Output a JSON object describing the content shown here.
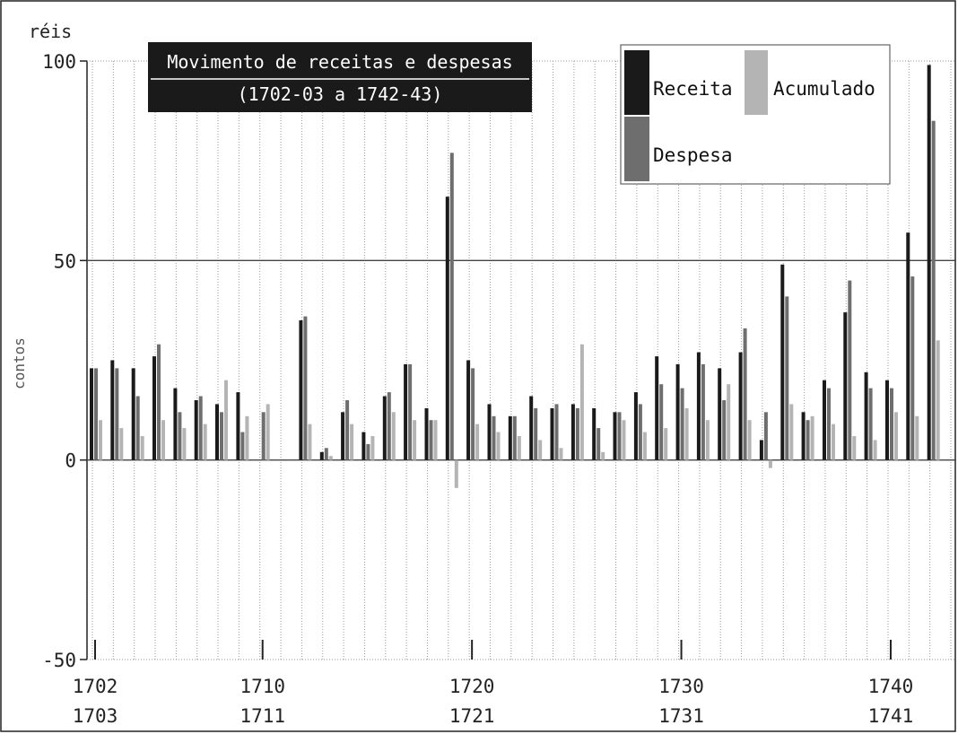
{
  "chart_data": {
    "type": "bar",
    "title": "Movimento de receitas e despesas",
    "subtitle": "(1702-03 a 1742-43)",
    "ylabel": "contos de réis",
    "ylabel_top": "réis",
    "ylabel_side": "contos",
    "ylim": [
      -50,
      100
    ],
    "yticks": [
      "100",
      "50",
      "0",
      "-50"
    ],
    "grid": true,
    "legend_position": "top-right",
    "colors": {
      "receita": "#1a1a1a",
      "despesa": "#6e6e6e",
      "acumulado": "#b4b4b4",
      "grid": "#9a9a9a"
    },
    "series": [
      {
        "name": "Receita",
        "values": [
          23,
          25,
          23,
          26,
          18,
          15,
          14,
          17,
          0,
          0,
          35,
          2,
          12,
          7,
          16,
          24,
          13,
          66,
          25,
          14,
          11,
          16,
          13,
          14,
          13,
          12,
          17,
          26,
          24,
          27,
          23,
          27,
          5,
          49,
          12,
          20,
          37,
          22,
          20,
          57,
          99
        ]
      },
      {
        "name": "Despesa",
        "values": [
          23,
          23,
          16,
          29,
          12,
          16,
          12,
          7,
          12,
          0,
          36,
          3,
          15,
          4,
          17,
          24,
          10,
          77,
          23,
          11,
          11,
          13,
          14,
          13,
          8,
          12,
          14,
          19,
          18,
          24,
          15,
          33,
          12,
          41,
          10,
          18,
          45,
          18,
          18,
          46,
          85
        ]
      },
      {
        "name": "Acumulado",
        "values": [
          10,
          8,
          6,
          10,
          8,
          9,
          20,
          11,
          14,
          0,
          9,
          1,
          9,
          6,
          12,
          10,
          10,
          -7,
          9,
          7,
          6,
          5,
          3,
          29,
          2,
          10,
          7,
          8,
          13,
          10,
          19,
          10,
          -2,
          14,
          11,
          9,
          6,
          5,
          12,
          11,
          30
        ]
      }
    ],
    "x_labels": [
      {
        "top": "1702",
        "bottom": "1703",
        "index": 0
      },
      {
        "top": "1710",
        "bottom": "1711",
        "index": 8
      },
      {
        "top": "1720",
        "bottom": "1721",
        "index": 18
      },
      {
        "top": "1730",
        "bottom": "1731",
        "index": 28
      },
      {
        "top": "1740",
        "bottom": "1741",
        "index": 38
      }
    ]
  }
}
